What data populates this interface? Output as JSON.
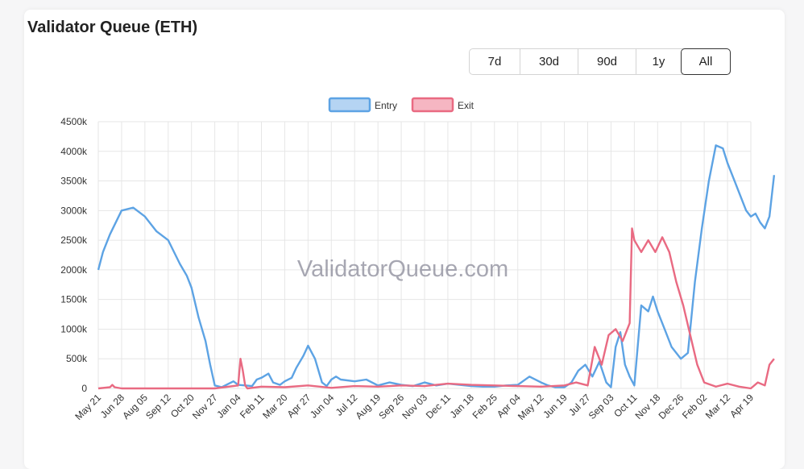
{
  "title": "Validator Queue (ETH)",
  "watermark": "ValidatorQueue.com",
  "range_buttons": [
    {
      "label": "7d",
      "active": false
    },
    {
      "label": "30d",
      "active": false
    },
    {
      "label": "90d",
      "active": false
    },
    {
      "label": "1y",
      "active": false
    },
    {
      "label": "All",
      "active": true
    }
  ],
  "colors": {
    "entry": "#5da3e4",
    "entry_fill": "#b5d4f3",
    "exit": "#e96a82",
    "exit_fill": "#f6b6c2",
    "grid": "#e6e6e6"
  },
  "chart_data": {
    "type": "line",
    "title": "",
    "legend": [
      "Entry",
      "Exit"
    ],
    "legend_position": "top",
    "grid": true,
    "ylim": [
      0,
      4500000
    ],
    "yticks": [
      0,
      500000,
      1000000,
      1500000,
      2000000,
      2500000,
      3000000,
      3500000,
      4000000,
      4500000
    ],
    "ytick_labels": [
      "0",
      "500k",
      "1000k",
      "1500k",
      "2000k",
      "2500k",
      "3000k",
      "3500k",
      "4000k",
      "4500k"
    ],
    "x_tick_labels": [
      "May 21",
      "Jun 28",
      "Aug 05",
      "Sep 12",
      "Oct 20",
      "Nov 27",
      "Jan 04",
      "Feb 11",
      "Mar 20",
      "Apr 27",
      "Jun 04",
      "Jul 12",
      "Aug 19",
      "Sep 26",
      "Nov 03",
      "Dec 11",
      "Jan 18",
      "Feb 25",
      "Apr 04",
      "May 12",
      "Jun 19",
      "Jul 27",
      "Sep 03",
      "Oct 11",
      "Nov 18",
      "Dec 26",
      "Feb 02",
      "Mar 12",
      "Apr 19"
    ],
    "series": [
      {
        "name": "Entry",
        "x": [
          0,
          0.2,
          0.5,
          1,
          1.5,
          2,
          2.5,
          3,
          3.5,
          3.8,
          4,
          4.3,
          4.6,
          4.8,
          5,
          5.3,
          5.6,
          5.8,
          6,
          6.3,
          6.6,
          6.8,
          7,
          7.3,
          7.5,
          7.8,
          8,
          8.3,
          8.5,
          8.8,
          9,
          9.3,
          9.6,
          9.8,
          10,
          10.2,
          10.4,
          11,
          11.5,
          12,
          12.5,
          13,
          13.5,
          14,
          14.5,
          15,
          15.5,
          16,
          16.5,
          17,
          17.5,
          18,
          18.5,
          19,
          19.3,
          19.6,
          20,
          20.3,
          20.6,
          20.9,
          21.2,
          21.5,
          21.8,
          22,
          22.2,
          22.4,
          22.6,
          22.8,
          23,
          23.3,
          23.6,
          23.8,
          24,
          24.3,
          24.6,
          25,
          25.3,
          25.6,
          25.9,
          26.2,
          26.5,
          26.8,
          27,
          27.3,
          27.6,
          27.8,
          28,
          28.2,
          28.4,
          28.6,
          28.8,
          29
        ],
        "values": [
          2000000,
          2300000,
          2600000,
          3000000,
          3050000,
          2900000,
          2650000,
          2500000,
          2100000,
          1900000,
          1700000,
          1200000,
          800000,
          400000,
          50000,
          20000,
          80000,
          120000,
          60000,
          50000,
          40000,
          150000,
          180000,
          250000,
          100000,
          60000,
          120000,
          180000,
          350000,
          550000,
          720000,
          500000,
          100000,
          40000,
          150000,
          200000,
          150000,
          120000,
          150000,
          50000,
          100000,
          60000,
          40000,
          100000,
          50000,
          80000,
          60000,
          40000,
          30000,
          30000,
          50000,
          60000,
          200000,
          100000,
          50000,
          20000,
          20000,
          100000,
          300000,
          400000,
          200000,
          450000,
          100000,
          20000,
          700000,
          950000,
          400000,
          200000,
          50000,
          1400000,
          1300000,
          1550000,
          1300000,
          1000000,
          700000,
          500000,
          600000,
          1800000,
          2700000,
          3500000,
          4100000,
          4050000,
          3800000,
          3500000,
          3200000,
          3000000,
          2900000,
          2950000,
          2800000,
          2700000,
          2900000,
          3600000
        ]
      },
      {
        "name": "Exit",
        "x": [
          0,
          0.5,
          0.6,
          0.7,
          1,
          2,
          3,
          4,
          5,
          6,
          6.1,
          6.2,
          6.3,
          6.4,
          7,
          8,
          9,
          10,
          11,
          12,
          13,
          14,
          15,
          16,
          17,
          18,
          19,
          20,
          20.5,
          21,
          21.3,
          21.6,
          21.9,
          22.2,
          22.5,
          22.8,
          22.9,
          23,
          23.3,
          23.6,
          23.9,
          24.2,
          24.5,
          24.8,
          25.1,
          25.4,
          25.7,
          26,
          26.5,
          27,
          27.5,
          28,
          28.3,
          28.6,
          28.8,
          29
        ],
        "values": [
          0,
          20000,
          60000,
          20000,
          0,
          0,
          0,
          0,
          0,
          50000,
          500000,
          300000,
          50000,
          0,
          30000,
          20000,
          50000,
          10000,
          40000,
          30000,
          50000,
          40000,
          80000,
          60000,
          50000,
          40000,
          30000,
          50000,
          100000,
          50000,
          700000,
          400000,
          900000,
          1000000,
          800000,
          1100000,
          2700000,
          2500000,
          2300000,
          2500000,
          2300000,
          2550000,
          2300000,
          1800000,
          1400000,
          900000,
          400000,
          100000,
          30000,
          80000,
          30000,
          0,
          100000,
          50000,
          400000,
          500000
        ]
      }
    ]
  }
}
